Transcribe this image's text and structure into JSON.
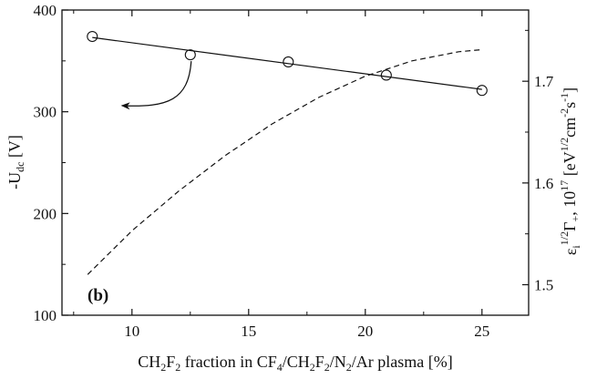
{
  "chart_data": {
    "type": "line",
    "panel_label": "(b)",
    "x": {
      "label_parts": [
        "CH",
        "2",
        "F",
        "2",
        " fraction in CF",
        "4",
        "/CH",
        "2",
        "F",
        "2",
        "/N",
        "2",
        "/Ar plasma [%]"
      ],
      "range": [
        7,
        27
      ],
      "ticks": [
        10,
        15,
        20,
        25
      ],
      "tick_labels": [
        "10",
        "15",
        "20",
        "25"
      ]
    },
    "y_left": {
      "label_parts": [
        "-U",
        "dc",
        " [V]"
      ],
      "range": [
        100,
        400
      ],
      "ticks": [
        100,
        200,
        300,
        400
      ],
      "tick_labels": [
        "100",
        "200",
        "300",
        "400"
      ]
    },
    "y_right": {
      "label_parts": [
        "ε",
        "i",
        "1/2",
        "Γ",
        "+",
        ", 10",
        "17",
        " [eV",
        "1/2",
        "cm",
        "-2",
        "s",
        "-1",
        "]"
      ],
      "range": [
        1.47,
        1.77
      ],
      "ticks": [
        1.5,
        1.6,
        1.7
      ],
      "tick_labels": [
        "1.5",
        "1.6",
        "1.7"
      ]
    },
    "series": [
      {
        "axis": "left",
        "style": "solid-with-open-circles",
        "points": [
          [
            8.3,
            374
          ],
          [
            12.5,
            356
          ],
          [
            16.7,
            349
          ],
          [
            20.9,
            336
          ],
          [
            25.0,
            321
          ]
        ],
        "fit": [
          [
            8.3,
            373
          ],
          [
            25.0,
            322
          ]
        ]
      },
      {
        "axis": "right",
        "style": "dashed",
        "points": [
          [
            8.1,
            1.51
          ],
          [
            10,
            1.553
          ],
          [
            12,
            1.592
          ],
          [
            14,
            1.627
          ],
          [
            16,
            1.658
          ],
          [
            18,
            1.684
          ],
          [
            20,
            1.705
          ],
          [
            22,
            1.72
          ],
          [
            24,
            1.729
          ],
          [
            25,
            1.731
          ]
        ]
      }
    ],
    "annotation": {
      "type": "curved-arrow",
      "from_point": [
        12.5,
        356
      ],
      "points_to": "left-axis"
    },
    "colors": {
      "line": "#111111",
      "background": "#ffffff"
    }
  }
}
